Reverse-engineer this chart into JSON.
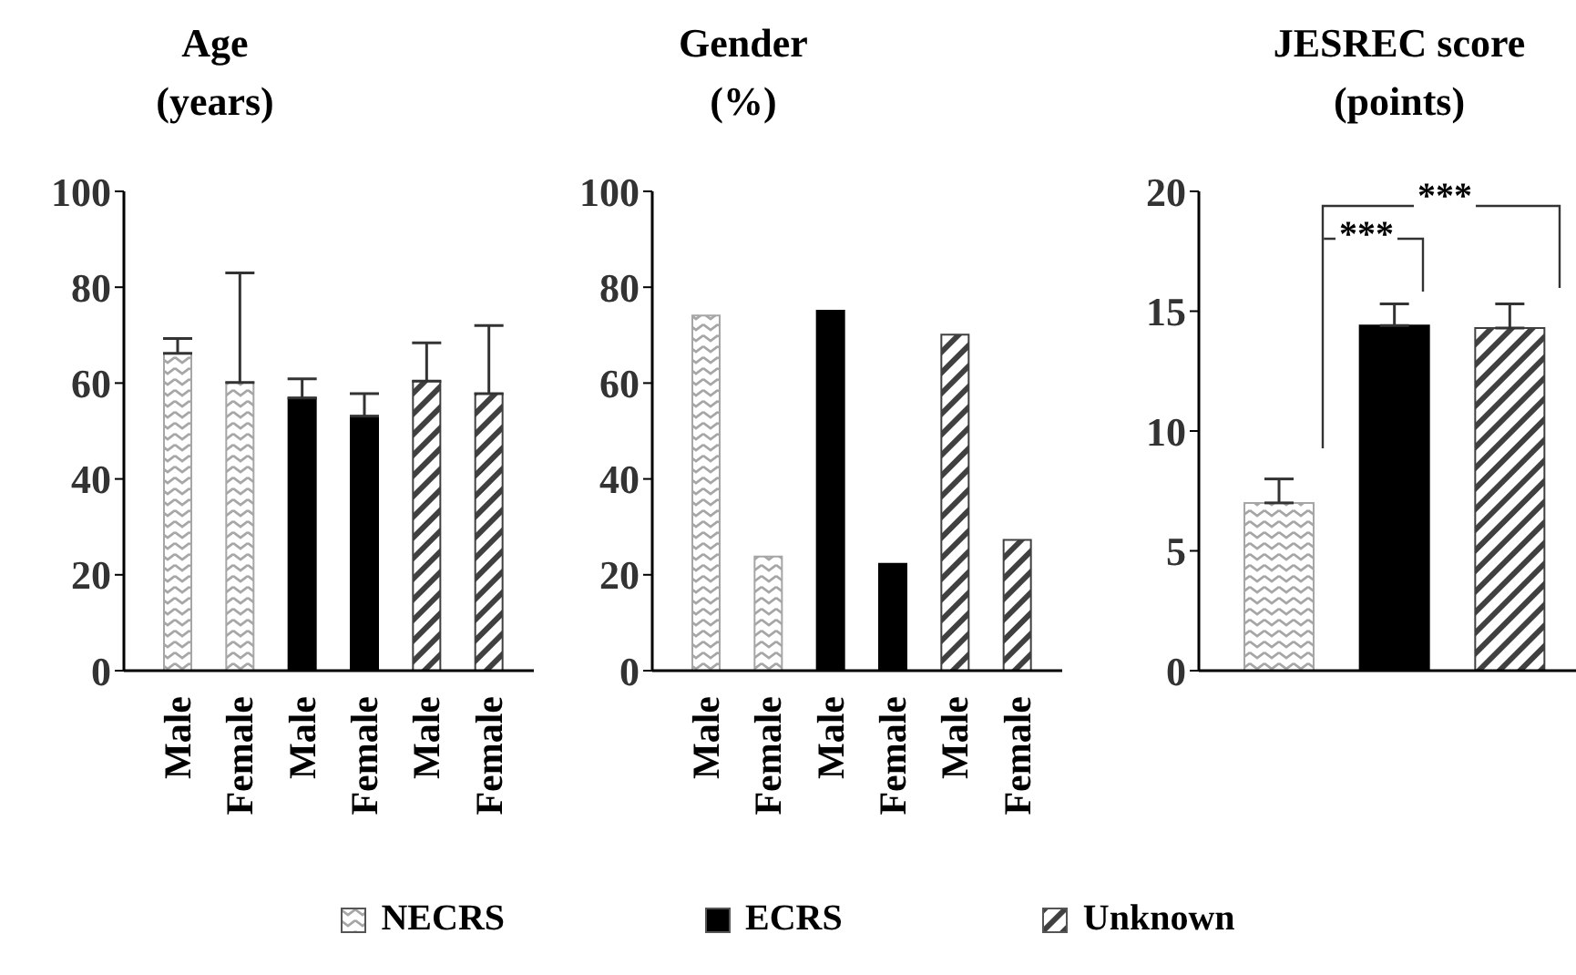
{
  "chart_data": [
    {
      "type": "bar",
      "ylabel": "Age\n(years)",
      "categories": [
        "Male",
        "Female",
        "Male",
        "Female",
        "Male",
        "Female"
      ],
      "stacked": true,
      "ylim": [
        0,
        100
      ],
      "yticks": [
        0,
        20,
        40,
        60,
        80,
        100
      ],
      "series": [
        {
          "color": "#a6a6a6",
          "values": [
            66.2,
            60.1,
            null,
            null,
            null,
            null
          ],
          "errors": [
            [
              66.2,
              69.3
            ],
            [
              60.1,
              83
            ],
            null,
            null,
            null,
            null
          ]
        },
        {
          "color": "#000000",
          "values": [
            null,
            null,
            56.9,
            53.1,
            null,
            null
          ],
          "errors": [
            null,
            null,
            [
              56.9,
              60.9
            ],
            [
              53.1,
              57.8
            ],
            null,
            null
          ]
        },
        {
          "color": "#404040",
          "values": [
            null,
            null,
            null,
            null,
            60.4,
            57.8
          ],
          "errors": [
            null,
            null,
            null,
            null,
            [
              60.4,
              68.4
            ],
            [
              57.8,
              72
            ]
          ]
        }
      ]
    },
    {
      "type": "bar",
      "ylabel": "Gender\n(%)",
      "categories": [
        "Male",
        "Female",
        "Male",
        "Female",
        "Male",
        "Female"
      ],
      "stacked": true,
      "ylim": [
        0,
        100
      ],
      "yticks": [
        0,
        20,
        40,
        60,
        80,
        100
      ],
      "series": [
        {
          "color": "#a6a6a6",
          "values": [
            74.1,
            23.8,
            null,
            null,
            null,
            null
          ]
        },
        {
          "color": "#000000",
          "values": [
            null,
            null,
            75.1,
            22.3,
            null,
            null
          ]
        },
        {
          "color": "#404040",
          "values": [
            null,
            null,
            null,
            null,
            70.1,
            27.3
          ]
        }
      ]
    },
    {
      "type": "bar",
      "ylabel": "JESREC score\n(points)",
      "categories": [
        null,
        null,
        null
      ],
      "stacked": true,
      "ylim": [
        0,
        20
      ],
      "yticks": [
        0,
        5,
        10,
        15,
        20
      ],
      "legend": "bottom",
      "annotations": [
        "***",
        "***"
      ],
      "series": [
        {
          "name": "NECRS",
          "color": "#a6a6a6",
          "values": [
            7.0,
            null,
            null
          ],
          "errors": [
            [
              7.0,
              8.0
            ],
            null,
            null
          ]
        },
        {
          "name": "ECRS",
          "color": "#000000",
          "values": [
            null,
            14.4,
            null
          ],
          "errors": [
            null,
            [
              14.4,
              15.3
            ],
            null
          ]
        },
        {
          "name": "Unknown",
          "color": "#404040",
          "values": [
            null,
            null,
            14.3
          ],
          "errors": [
            null,
            null,
            [
              14.3,
              15.3
            ]
          ]
        }
      ]
    }
  ]
}
